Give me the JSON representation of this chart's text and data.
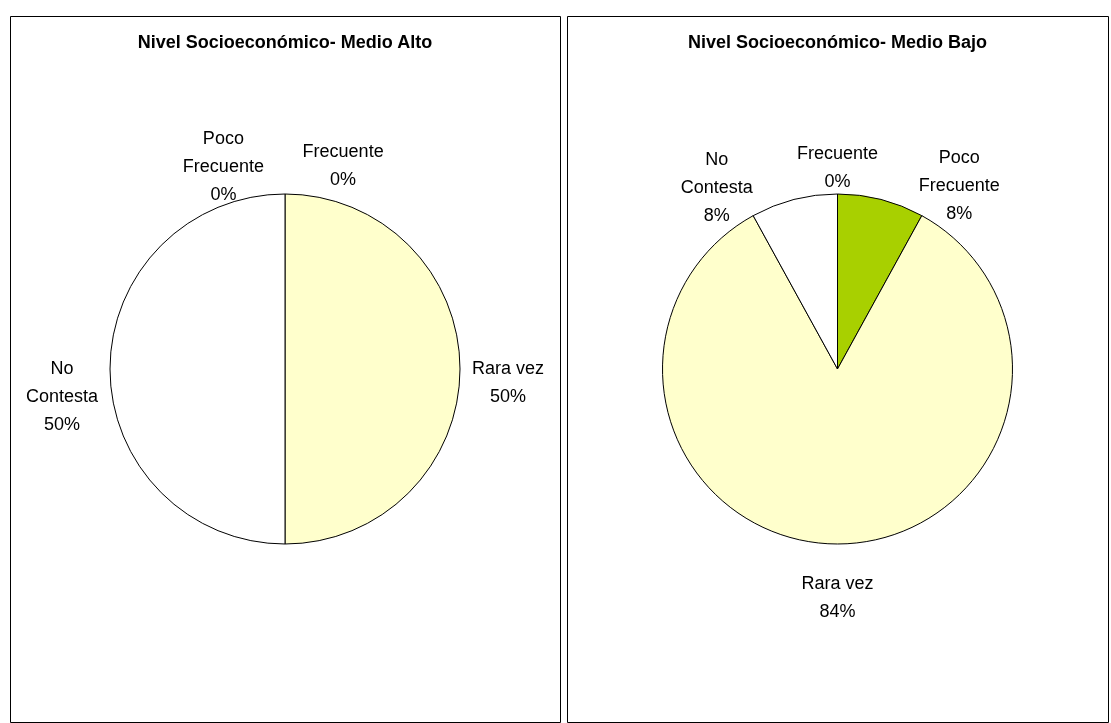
{
  "chart_data": [
    {
      "type": "pie",
      "title": "Nivel Socioeconómico- Medio Alto",
      "categories": [
        "Frecuente",
        "Poco Frecuente",
        "Rara vez",
        "No Contesta"
      ],
      "values": [
        0,
        0,
        50,
        50
      ],
      "colors": [
        "#000000",
        "#a8d000",
        "#ffffcc",
        "#ffffff"
      ],
      "value_labels": [
        "0%",
        "0%",
        "50%",
        "50%"
      ]
    },
    {
      "type": "pie",
      "title": "Nivel Socioeconómico- Medio Bajo",
      "categories": [
        "Frecuente",
        "Poco Frecuente",
        "Rara vez",
        "No Contesta"
      ],
      "values": [
        0,
        8,
        84,
        8
      ],
      "colors": [
        "#000000",
        "#a8d000",
        "#ffffcc",
        "#ffffff"
      ],
      "value_labels": [
        "0%",
        "8%",
        "84%",
        "8%"
      ]
    }
  ]
}
